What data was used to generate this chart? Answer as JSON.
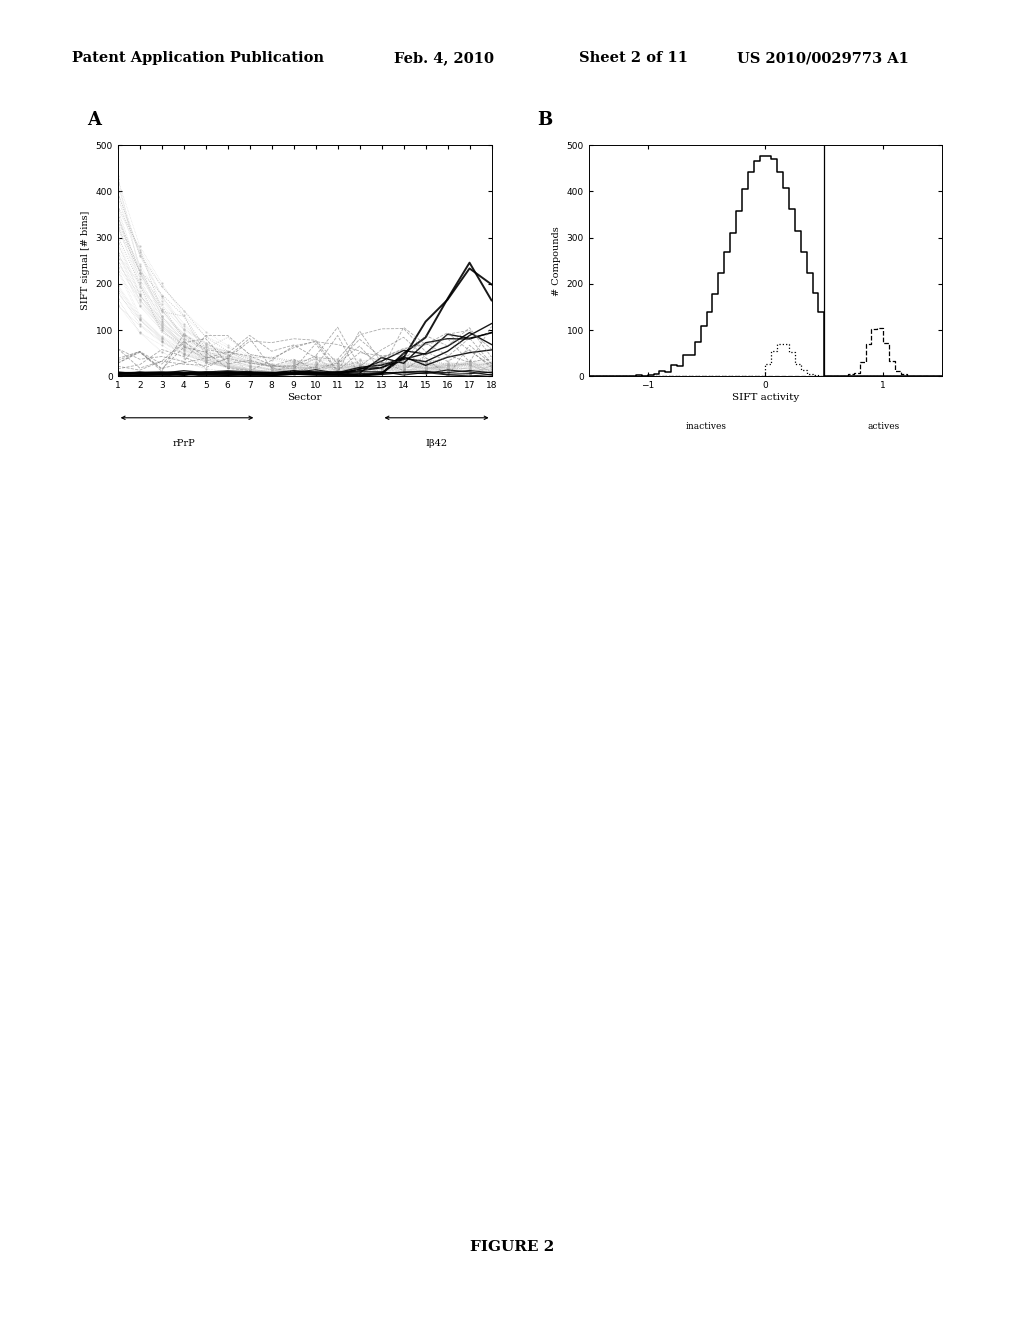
{
  "page_header_left": "Patent Application Publication",
  "page_header_mid": "Feb. 4, 2010",
  "page_header_right_1": "Sheet 2 of 11",
  "page_header_right_2": "US 2010/0029773 A1",
  "figure_label": "FIGURE 2",
  "panel_A_label": "A",
  "panel_B_label": "B",
  "panel_A": {
    "ylabel": "SIFT signal [# bins]",
    "xlabel": "Sector",
    "yticks": [
      0,
      100,
      200,
      300,
      400,
      500
    ],
    "xticks": [
      1,
      2,
      3,
      4,
      5,
      6,
      7,
      8,
      9,
      10,
      11,
      12,
      13,
      14,
      15,
      16,
      17,
      18
    ],
    "xlim": [
      1,
      18
    ],
    "ylim": [
      0,
      500
    ]
  },
  "panel_B": {
    "ylabel": "# Compounds",
    "xlabel": "SIFT activity",
    "yticks": [
      0,
      100,
      200,
      300,
      400,
      500
    ],
    "xticks": [
      -1,
      0,
      1
    ],
    "xlim": [
      -1.5,
      1.5
    ],
    "ylim": [
      0,
      500
    ],
    "inactives_label": "inactives",
    "actives_label": "actives",
    "vline_x": 0.5
  },
  "background_color": "#ffffff"
}
